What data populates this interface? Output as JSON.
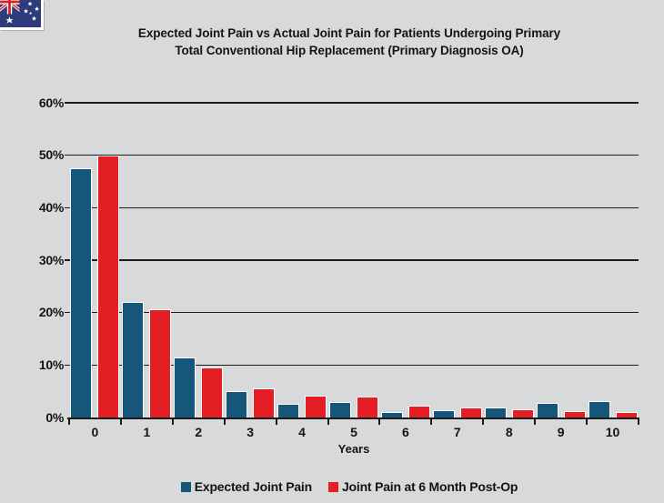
{
  "flag": {
    "country": "Australia"
  },
  "title": {
    "line1": "Expected Joint Pain vs Actual Joint Pain for Patients Undergoing Primary",
    "line2": "Total Conventional Hip Replacement (Primary Diagnosis OA)"
  },
  "chart_data": {
    "type": "bar",
    "title": "Expected Joint Pain vs Actual Joint Pain for Patients Undergoing Primary Total Conventional Hip Replacement (Primary Diagnosis OA)",
    "categories": [
      "0",
      "1",
      "2",
      "3",
      "4",
      "5",
      "6",
      "7",
      "8",
      "9",
      "10"
    ],
    "series": [
      {
        "name": "Expected Joint Pain",
        "color": "#15567a",
        "values": [
          47.5,
          22.0,
          11.5,
          5.1,
          2.6,
          2.9,
          1.0,
          1.4,
          1.9,
          2.7,
          3.2
        ]
      },
      {
        "name": "Joint Pain at 6 Month Post-Op",
        "color": "#e41e25",
        "values": [
          50.0,
          20.7,
          9.5,
          5.6,
          4.1,
          4.0,
          2.2,
          1.9,
          1.6,
          1.3,
          1.1
        ]
      }
    ],
    "xlabel": "Years",
    "ylabel": "",
    "ylim": [
      0,
      60
    ],
    "ytick_step": 10,
    "ytick_labels": [
      "0%",
      "10%",
      "20%",
      "30%",
      "40%",
      "50%",
      "60%"
    ],
    "grid": true,
    "legend_position": "bottom"
  },
  "colors": {
    "background": "#d8d9db",
    "axis": "#1a1a1a",
    "expected_blue": "#15567a",
    "postop_red": "#e41e25",
    "bar_outline": "#ffffff",
    "flag_blue": "#2e3c7c",
    "flag_red": "#d8232a"
  }
}
